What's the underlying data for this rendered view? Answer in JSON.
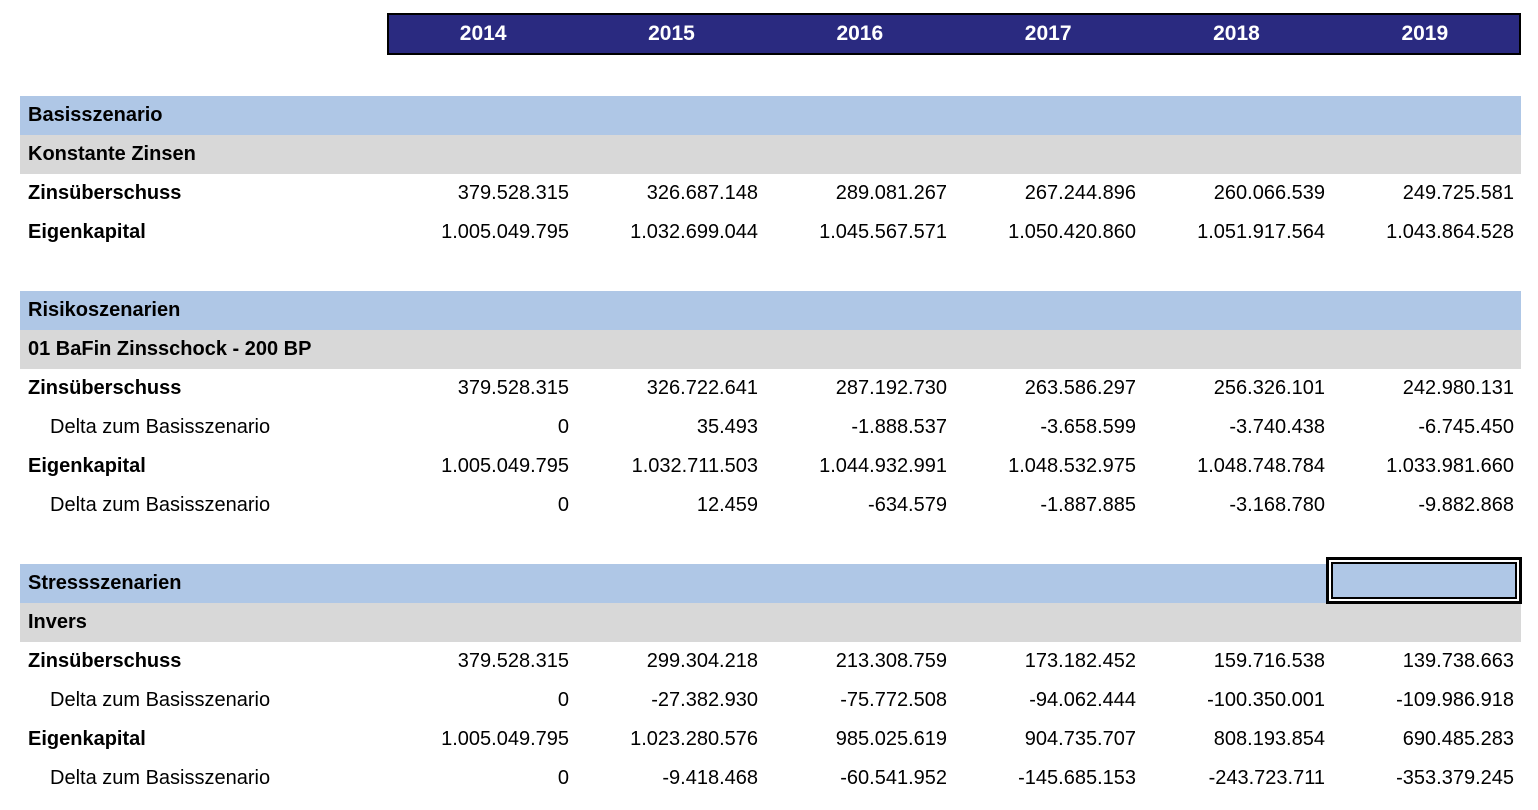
{
  "colors": {
    "year_header_bg": "#2A2A80",
    "year_header_text": "#FFFFFF",
    "section_band_bg": "#AFC7E6",
    "subsection_band_bg": "#D8D8D8",
    "body_bg": "#FFFFFF",
    "text": "#000000"
  },
  "table": {
    "years": [
      "2014",
      "2015",
      "2016",
      "2017",
      "2018",
      "2019"
    ],
    "sections": [
      {
        "id": "basisszenario",
        "title": "Basisszenario",
        "subtitle": "Konstante Zinsen",
        "rows": [
          {
            "label": "Zinsüberschuss",
            "indent": false,
            "values": [
              "379.528.315",
              "326.687.148",
              "289.081.267",
              "267.244.896",
              "260.066.539",
              "249.725.581"
            ]
          },
          {
            "label": "Eigenkapital",
            "indent": false,
            "values": [
              "1.005.049.795",
              "1.032.699.044",
              "1.045.567.571",
              "1.050.420.860",
              "1.051.917.564",
              "1.043.864.528"
            ]
          }
        ]
      },
      {
        "id": "risikoszenarien",
        "title": "Risikoszenarien",
        "subtitle": "01 BaFin Zinsschock - 200 BP",
        "rows": [
          {
            "label": "Zinsüberschuss",
            "indent": false,
            "values": [
              "379.528.315",
              "326.722.641",
              "287.192.730",
              "263.586.297",
              "256.326.101",
              "242.980.131"
            ]
          },
          {
            "label": "Delta zum Basisszenario",
            "indent": true,
            "values": [
              "0",
              "35.493",
              "-1.888.537",
              "-3.658.599",
              "-3.740.438",
              "-6.745.450"
            ]
          },
          {
            "label": "Eigenkapital",
            "indent": false,
            "values": [
              "1.005.049.795",
              "1.032.711.503",
              "1.044.932.991",
              "1.048.532.975",
              "1.048.748.784",
              "1.033.981.660"
            ]
          },
          {
            "label": "Delta zum Basisszenario",
            "indent": true,
            "values": [
              "0",
              "12.459",
              "-634.579",
              "-1.887.885",
              "-3.168.780",
              "-9.882.868"
            ]
          }
        ]
      },
      {
        "id": "stressszenarien",
        "title": "Stressszenarien",
        "subtitle": "Invers",
        "rows": [
          {
            "label": "Zinsüberschuss",
            "indent": false,
            "values": [
              "379.528.315",
              "299.304.218",
              "213.308.759",
              "173.182.452",
              "159.716.538",
              "139.738.663"
            ]
          },
          {
            "label": "Delta zum Basisszenario",
            "indent": true,
            "values": [
              "0",
              "-27.382.930",
              "-75.772.508",
              "-94.062.444",
              "-100.350.001",
              "-109.986.918"
            ]
          },
          {
            "label": "Eigenkapital",
            "indent": false,
            "values": [
              "1.005.049.795",
              "1.023.280.576",
              "985.025.619",
              "904.735.707",
              "808.193.854",
              "690.485.283"
            ]
          },
          {
            "label": "Delta zum Basisszenario",
            "indent": true,
            "values": [
              "0",
              "-9.418.468",
              "-60.541.952",
              "-145.685.153",
              "-243.723.711",
              "-353.379.245"
            ]
          }
        ]
      }
    ]
  },
  "selection": {
    "section": "Stressszenarien",
    "column": "2019",
    "value": ""
  }
}
